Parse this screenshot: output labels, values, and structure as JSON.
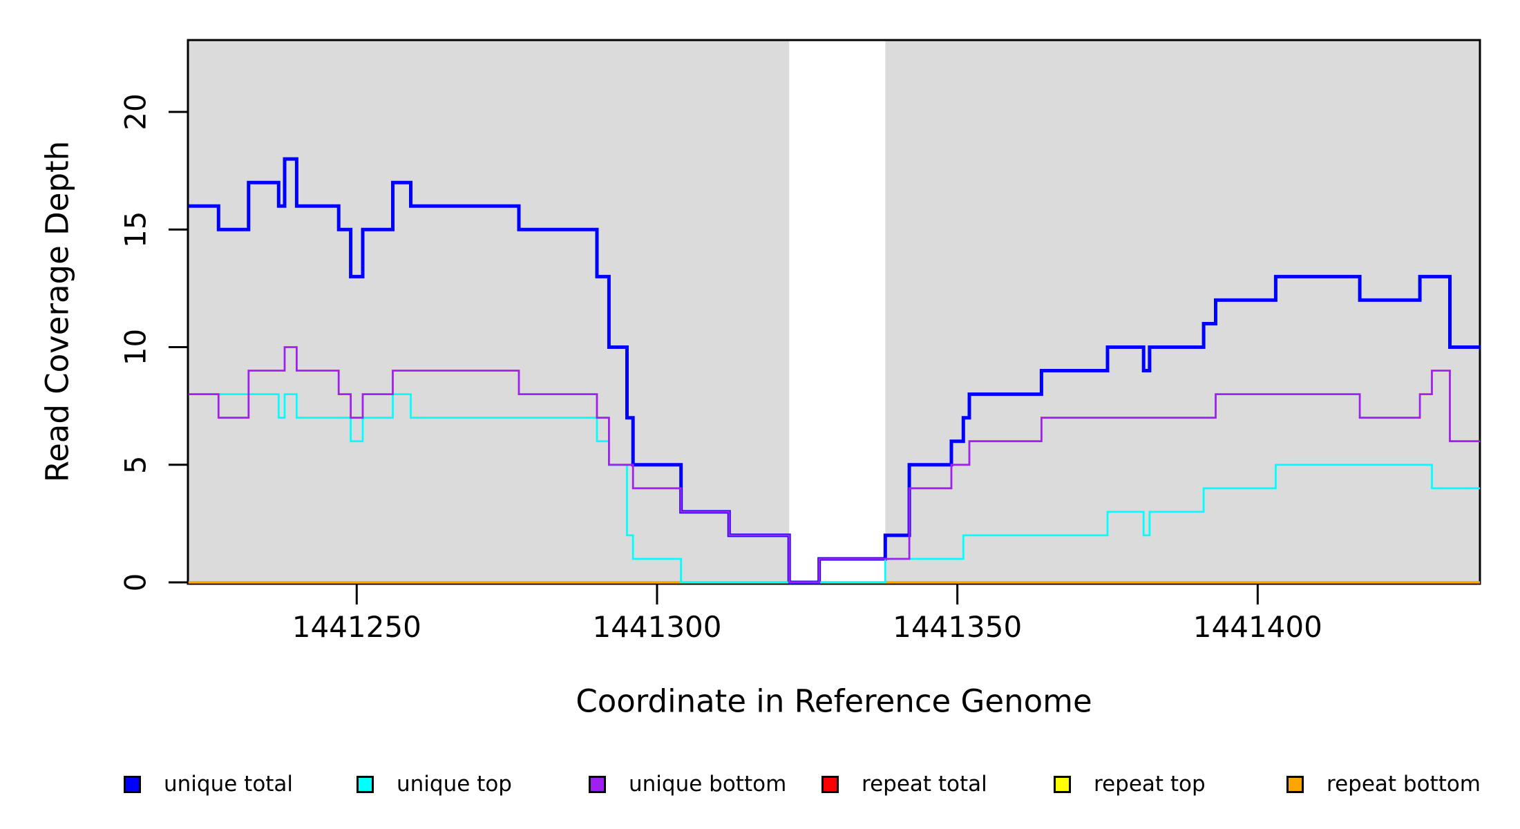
{
  "chart_data": {
    "type": "line",
    "subtype": "step",
    "title": "",
    "xlabel": "Coordinate in Reference Genome",
    "ylabel": "Read Coverage Depth",
    "x_range": [
      1441221.9,
      1441437.0
    ],
    "y_range": [
      0,
      23.1
    ],
    "x_ticks": [
      1441250,
      1441300,
      1441350,
      1441400
    ],
    "y_ticks": [
      0,
      5,
      10,
      15,
      20
    ],
    "grid": false,
    "plot_background_color": "#ffffff",
    "shaded_band_color": "#dbdbdb",
    "shaded_regions": [
      [
        1441221.9,
        1441322.0
      ],
      [
        1441338.0,
        1441437.0
      ]
    ],
    "series": [
      {
        "name": "repeat total",
        "color": "#ff0000",
        "stroke_width": 2.8,
        "steps": [
          [
            1441222,
            0
          ]
        ]
      },
      {
        "name": "repeat top",
        "color": "#ffff00",
        "stroke_width": 2.8,
        "steps": [
          [
            1441222,
            0
          ]
        ]
      },
      {
        "name": "repeat bottom",
        "color": "#ffa500",
        "stroke_width": 3.5,
        "steps": [
          [
            1441222,
            0
          ]
        ]
      },
      {
        "name": "unique total",
        "color": "#0000ff",
        "stroke_width": 5,
        "steps": [
          [
            1441222,
            16
          ],
          [
            1441227,
            15
          ],
          [
            1441232,
            17
          ],
          [
            1441237,
            16
          ],
          [
            1441238,
            18
          ],
          [
            1441240,
            16
          ],
          [
            1441247,
            15
          ],
          [
            1441249,
            13
          ],
          [
            1441251,
            15
          ],
          [
            1441256,
            17
          ],
          [
            1441259,
            16
          ],
          [
            1441277,
            15
          ],
          [
            1441290,
            13
          ],
          [
            1441292,
            10
          ],
          [
            1441295,
            7
          ],
          [
            1441296,
            5
          ],
          [
            1441304,
            3
          ],
          [
            1441312,
            2
          ],
          [
            1441322,
            0
          ],
          [
            1441327,
            1
          ],
          [
            1441338,
            2
          ],
          [
            1441342,
            5
          ],
          [
            1441349,
            6
          ],
          [
            1441351,
            7
          ],
          [
            1441352,
            8
          ],
          [
            1441364,
            9
          ],
          [
            1441375,
            10
          ],
          [
            1441381,
            9
          ],
          [
            1441382,
            10
          ],
          [
            1441391,
            11
          ],
          [
            1441393,
            12
          ],
          [
            1441403,
            13
          ],
          [
            1441417,
            12
          ],
          [
            1441427,
            13
          ],
          [
            1441432,
            10
          ]
        ]
      },
      {
        "name": "unique top",
        "color": "#00ffff",
        "stroke_width": 2.8,
        "steps": [
          [
            1441222,
            8
          ],
          [
            1441237,
            7
          ],
          [
            1441238,
            8
          ],
          [
            1441240,
            7
          ],
          [
            1441249,
            6
          ],
          [
            1441251,
            7
          ],
          [
            1441256,
            8
          ],
          [
            1441259,
            7
          ],
          [
            1441290,
            6
          ],
          [
            1441292,
            5
          ],
          [
            1441295,
            2
          ],
          [
            1441296,
            1
          ],
          [
            1441304,
            0
          ],
          [
            1441338,
            1
          ],
          [
            1441351,
            2
          ],
          [
            1441375,
            3
          ],
          [
            1441381,
            2
          ],
          [
            1441382,
            3
          ],
          [
            1441391,
            4
          ],
          [
            1441403,
            5
          ],
          [
            1441429,
            4
          ]
        ]
      },
      {
        "name": "unique bottom",
        "color": "#a020f0",
        "stroke_width": 2.8,
        "steps": [
          [
            1441222,
            8
          ],
          [
            1441227,
            7
          ],
          [
            1441232,
            9
          ],
          [
            1441238,
            10
          ],
          [
            1441240,
            9
          ],
          [
            1441247,
            8
          ],
          [
            1441249,
            7
          ],
          [
            1441251,
            8
          ],
          [
            1441256,
            9
          ],
          [
            1441277,
            8
          ],
          [
            1441290,
            7
          ],
          [
            1441292,
            5
          ],
          [
            1441296,
            4
          ],
          [
            1441304,
            3
          ],
          [
            1441312,
            2
          ],
          [
            1441322,
            0
          ],
          [
            1441327,
            1
          ],
          [
            1441342,
            4
          ],
          [
            1441349,
            5
          ],
          [
            1441352,
            6
          ],
          [
            1441364,
            7
          ],
          [
            1441393,
            8
          ],
          [
            1441417,
            7
          ],
          [
            1441427,
            8
          ],
          [
            1441429,
            9
          ],
          [
            1441432,
            6
          ]
        ]
      }
    ]
  },
  "axes": {
    "x": {
      "label": "Coordinate in Reference Genome"
    },
    "y": {
      "label": "Read Coverage Depth"
    }
  },
  "legend": {
    "position": "bottom",
    "items": [
      {
        "label": "unique total",
        "color": "#0000ff"
      },
      {
        "label": "unique top",
        "color": "#00ffff"
      },
      {
        "label": "unique bottom",
        "color": "#a020f0"
      },
      {
        "label": "repeat total",
        "color": "#ff0000"
      },
      {
        "label": "repeat top",
        "color": "#ffff00"
      },
      {
        "label": "repeat bottom",
        "color": "#ffa500"
      }
    ]
  }
}
